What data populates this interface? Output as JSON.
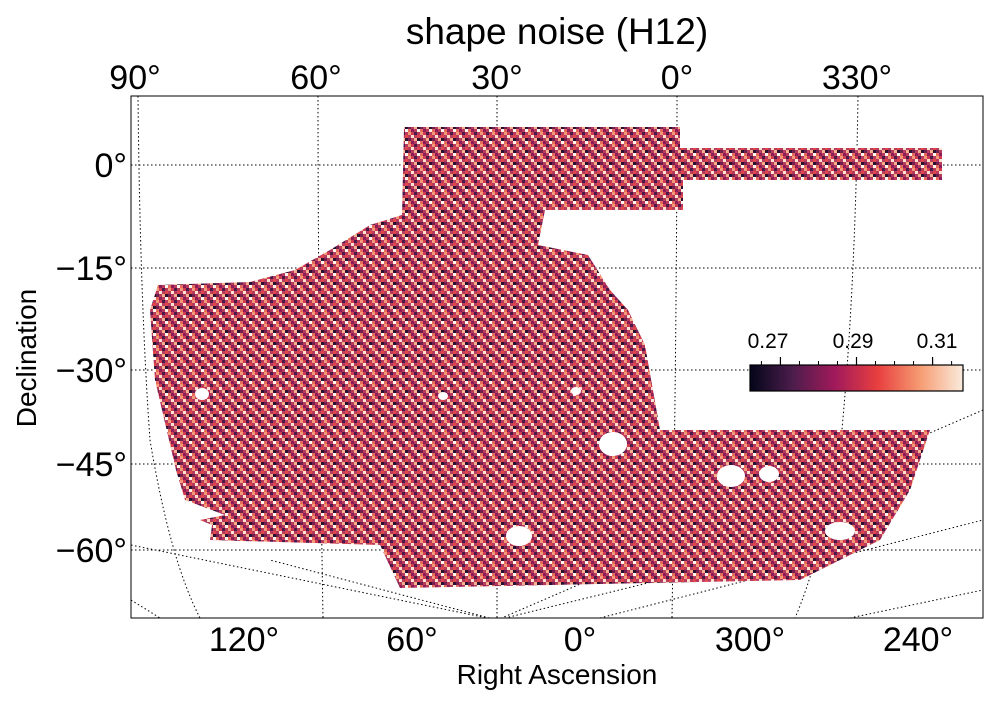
{
  "chart_data": {
    "type": "heatmap",
    "title": "shape noise (H12)",
    "xlabel": "Right Ascension",
    "ylabel": "Declination",
    "top_ticks": [
      "90°",
      "60°",
      "30°",
      "0°",
      "330°"
    ],
    "bottom_ticks": [
      "120°",
      "60°",
      "0°",
      "300°",
      "240°"
    ],
    "dec_ticks": [
      "0°",
      "−15°",
      "−30°",
      "−45°",
      "−60°"
    ],
    "colorbar": {
      "ticks": [
        "0.27",
        "0.29",
        "0.31"
      ],
      "range": [
        0.262,
        0.318
      ],
      "colormap": "rocket",
      "colors": [
        "#03051a",
        "#4c1d4b",
        "#a11a5b",
        "#e83f3f",
        "#f69c73",
        "#faebdd"
      ]
    },
    "grid": true
  }
}
